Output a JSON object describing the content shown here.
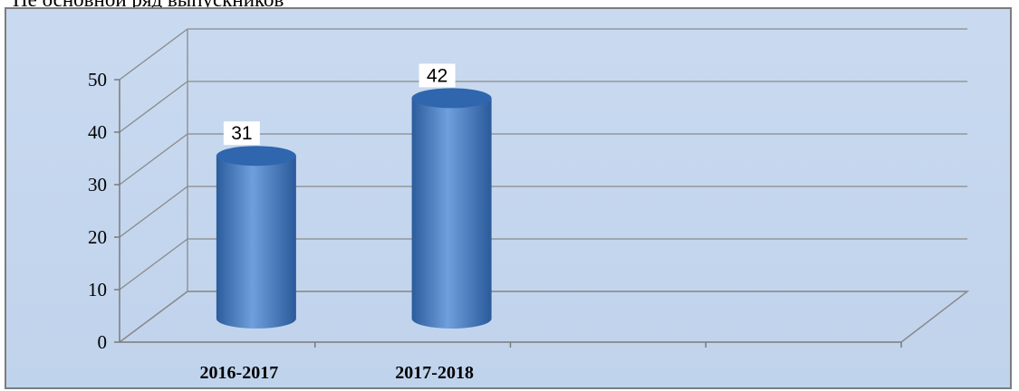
{
  "header_fragment": "Не основной ряд выпускников",
  "chart_data": {
    "type": "bar",
    "style": "3d-cylinder",
    "categories": [
      "2016-2017",
      "2017-2018",
      "",
      ""
    ],
    "series": [
      {
        "values": [
          31,
          42,
          null,
          null
        ]
      }
    ],
    "ylim": [
      0,
      50
    ],
    "yticks": [
      0,
      10,
      20,
      30,
      40,
      50
    ],
    "grid": true,
    "legend": "none",
    "data_labels": [
      "31",
      "42"
    ],
    "colors": {
      "bar": "#4f81bd",
      "bar_dark": "#2a5a9a",
      "plot_bg": "#c6d9f0",
      "grid": "#8a8a8a"
    }
  }
}
